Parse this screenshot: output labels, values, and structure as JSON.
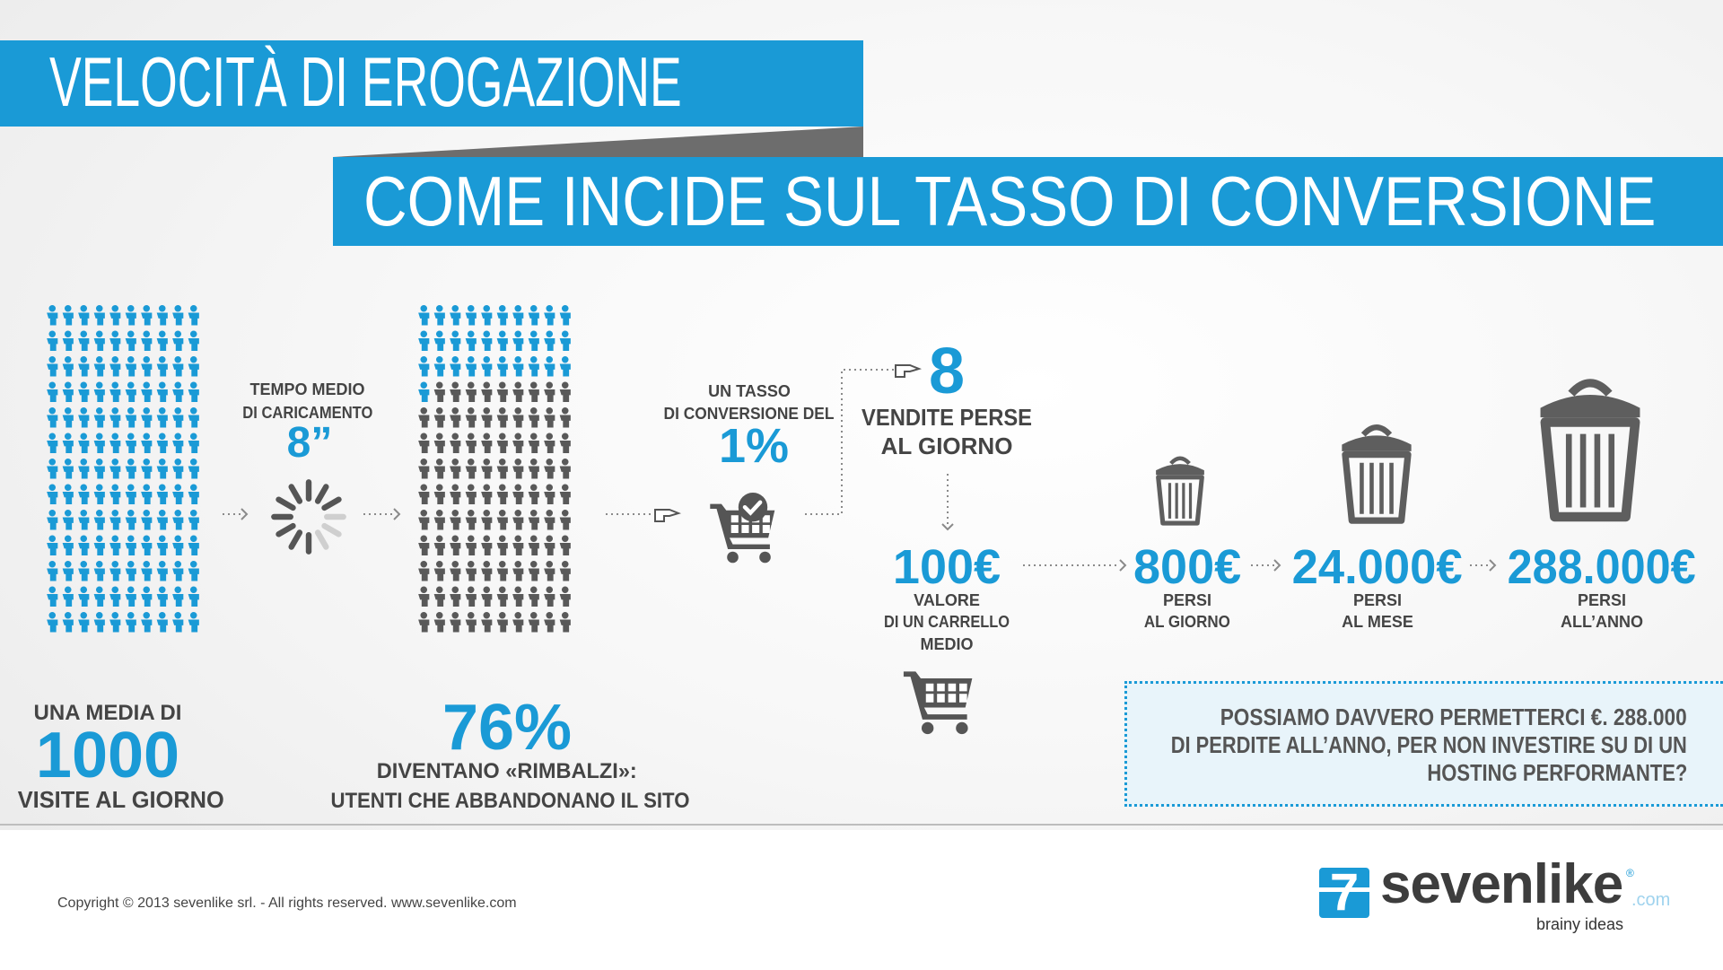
{
  "title": "VELOCITÀ DI EROGAZIONE",
  "subtitle": "COME INCIDE SUL TASSO DI CONVERSIONE",
  "visits": {
    "top": "UNA MEDIA DI",
    "value": "1000",
    "bottom": "VISITE AL GIORNO"
  },
  "load_time": {
    "line1": "TEMPO MEDIO",
    "line2": "DI CARICAMENTO",
    "value": "8”"
  },
  "bounce": {
    "value": "76%",
    "line1": "DIVENTANO «RIMBALZI»:",
    "line2": "UTENTI CHE ABBANDONANO IL SITO",
    "rate": 0.76
  },
  "conversion": {
    "line1": "UN TASSO",
    "line2": "DI CONVERSIONE DEL",
    "value": "1%"
  },
  "lost_sales": {
    "value": "8",
    "line1": "VENDITE PERSE",
    "line2": "AL GIORNO"
  },
  "cart_value": {
    "value": "100€",
    "line1": "VALORE",
    "line2": "DI UN CARRELLO",
    "line3": "MEDIO"
  },
  "losses": [
    {
      "value": "800€",
      "line1": "PERSI",
      "line2": "AL GIORNO"
    },
    {
      "value": "24.000€",
      "line1": "PERSI",
      "line2": "AL MESE"
    },
    {
      "value": "288.000€",
      "line1": "PERSI",
      "line2": "ALL’ANNO"
    }
  ],
  "callout": {
    "line1": "POSSIAMO DAVVERO PERMETTERCI €. 288.000",
    "line2": "DI PERDITE ALL’ANNO, PER NON INVESTIRE SU DI UN",
    "line3": "HOSTING PERFORMANTE?"
  },
  "footer": {
    "copyright": "Copyright © 2013 sevenlike srl. - All rights reserved. www.sevenlike.com"
  },
  "logo": {
    "digit": "7",
    "name": "sevenlike",
    "suffix": ".com",
    "tagline": "brainy ideas",
    "registered": "®"
  },
  "colors": {
    "accent": "#1a9ad6",
    "dark": "#4a4a4a",
    "grey_person": "#595959"
  },
  "icons": [
    "person-icon",
    "spinner-icon",
    "cart-check-icon",
    "cart-icon",
    "trash-can-icon",
    "pointing-hand-icon",
    "dotted-arrow-icon"
  ]
}
